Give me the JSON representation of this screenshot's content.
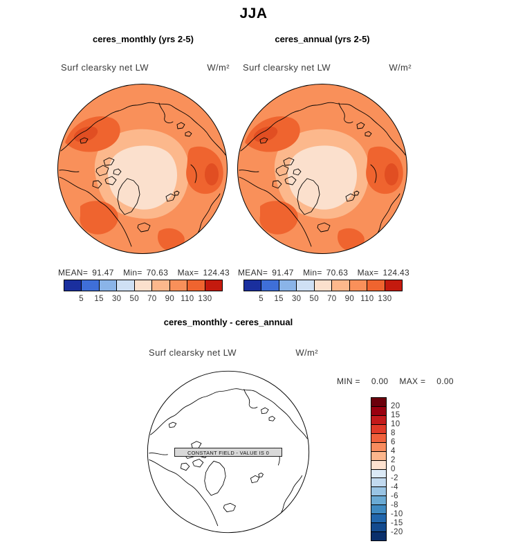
{
  "season_title": "JJA",
  "panels": [
    {
      "title": "ceres_monthly (yrs 2-5)",
      "field": "Surf clearsky net LW",
      "units": "W/m²",
      "stats": {
        "mean_label": "MEAN=",
        "mean": "91.47",
        "min_label": "Min=",
        "min": "70.63",
        "max_label": "Max=",
        "max": "124.43"
      }
    },
    {
      "title": "ceres_annual (yrs 2-5)",
      "field": "Surf clearsky net LW",
      "units": "W/m²",
      "stats": {
        "mean_label": "MEAN=",
        "mean": "91.47",
        "min_label": "Min=",
        "min": "70.63",
        "max_label": "Max=",
        "max": "124.43"
      }
    }
  ],
  "top_colorbar": {
    "ticks": [
      "5",
      "15",
      "30",
      "50",
      "70",
      "90",
      "110",
      "130"
    ],
    "colors": [
      "#1a2f9e",
      "#3f6fd8",
      "#8ab4e8",
      "#cfe0f4",
      "#fbe0cd",
      "#fcb88c",
      "#f9905a",
      "#ef642f",
      "#c41a0e"
    ]
  },
  "diff": {
    "title": "ceres_monthly - ceres_annual",
    "field": "Surf clearsky net LW",
    "units": "W/m²",
    "min_label": "MIN =",
    "min": "0.00",
    "max_label": "MAX =",
    "max": "0.00",
    "constant_text": "CONSTANT FIELD - VALUE IS 0",
    "colorbar": {
      "ticks": [
        "20",
        "15",
        "10",
        "8",
        "6",
        "4",
        "2",
        "0",
        "-2",
        "-4",
        "-6",
        "-8",
        "-10",
        "-15",
        "-20"
      ],
      "colors": [
        "#6b000c",
        "#99000f",
        "#c31a1b",
        "#e03a28",
        "#f0613c",
        "#f98c5e",
        "#fcb68c",
        "#fde2d0",
        "#dbe9f6",
        "#c1d9ef",
        "#99c4e4",
        "#6aaad4",
        "#3f8ac1",
        "#2166ac",
        "#134a8e",
        "#0a2f6b"
      ]
    }
  },
  "map_palette": {
    "base": "#f9905a",
    "light": "#fcb88c",
    "pale_core": "#fbe0cd",
    "dark_patch": "#ef642f",
    "darkest_patch": "#e14e22",
    "coastline": "#000000",
    "diff_base": "#ffffff"
  },
  "chart_data": [
    {
      "type": "heatmap",
      "title": "ceres_monthly (yrs 2-5)",
      "season": "JJA",
      "variable": "Surf clearsky net LW",
      "units": "W/m²",
      "projection": "north polar stereographic",
      "contour_levels": [
        5,
        15,
        30,
        50,
        70,
        90,
        110,
        130
      ],
      "stats": {
        "mean": 91.47,
        "min": 70.63,
        "max": 124.43
      },
      "legend_position": "bottom"
    },
    {
      "type": "heatmap",
      "title": "ceres_annual (yrs 2-5)",
      "season": "JJA",
      "variable": "Surf clearsky net LW",
      "units": "W/m²",
      "projection": "north polar stereographic",
      "contour_levels": [
        5,
        15,
        30,
        50,
        70,
        90,
        110,
        130
      ],
      "stats": {
        "mean": 91.47,
        "min": 70.63,
        "max": 124.43
      },
      "legend_position": "bottom"
    },
    {
      "type": "heatmap",
      "title": "ceres_monthly - ceres_annual",
      "season": "JJA",
      "variable": "Surf clearsky net LW",
      "units": "W/m²",
      "projection": "north polar stereographic",
      "contour_levels": [
        20,
        15,
        10,
        8,
        6,
        4,
        2,
        0,
        -2,
        -4,
        -6,
        -8,
        -10,
        -15,
        -20
      ],
      "stats": {
        "min": 0.0,
        "max": 0.0
      },
      "annotation": "CONSTANT FIELD - VALUE IS 0",
      "legend_position": "right"
    }
  ]
}
